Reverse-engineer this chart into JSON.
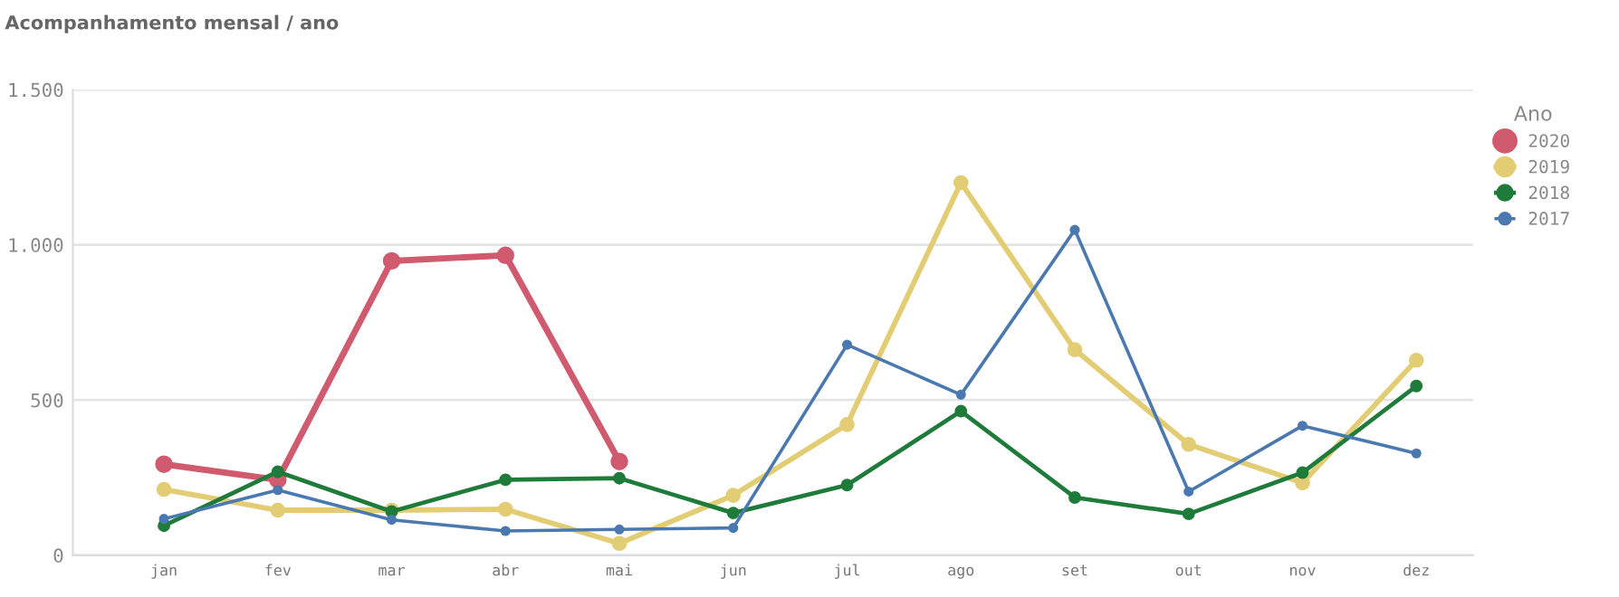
{
  "chart_data": {
    "type": "line",
    "title": "Acompanhamento mensal / ano",
    "legend_title": "Ano",
    "categories": [
      "jan",
      "fev",
      "mar",
      "abr",
      "mai",
      "jun",
      "jul",
      "ago",
      "set",
      "out",
      "nov",
      "dez"
    ],
    "series": [
      {
        "name": "2020",
        "color": "#d05a6e",
        "values": [
          293,
          243,
          948,
          966,
          302,
          null,
          null,
          null,
          null,
          null,
          null,
          null
        ]
      },
      {
        "name": "2019",
        "color": "#e3cd74",
        "values": [
          212,
          145,
          145,
          148,
          38,
          193,
          421,
          1200,
          662,
          357,
          233,
          628
        ]
      },
      {
        "name": "2018",
        "color": "#1e7b3a",
        "values": [
          95,
          269,
          141,
          243,
          248,
          136,
          226,
          464,
          186,
          133,
          266,
          545
        ]
      },
      {
        "name": "2017",
        "color": "#4a78b0",
        "values": [
          117,
          210,
          114,
          78,
          83,
          88,
          678,
          517,
          1048,
          205,
          417,
          328
        ]
      }
    ],
    "ylim": [
      0,
      1500
    ],
    "yticks": [
      0,
      {
        "value": 500,
        "label": "500"
      },
      {
        "value": 1000,
        "label": "1.000"
      },
      {
        "value": 1500,
        "label": "1.500"
      }
    ],
    "grid": "y",
    "legend": "top right",
    "marker": "circle",
    "line_style": "solid"
  }
}
